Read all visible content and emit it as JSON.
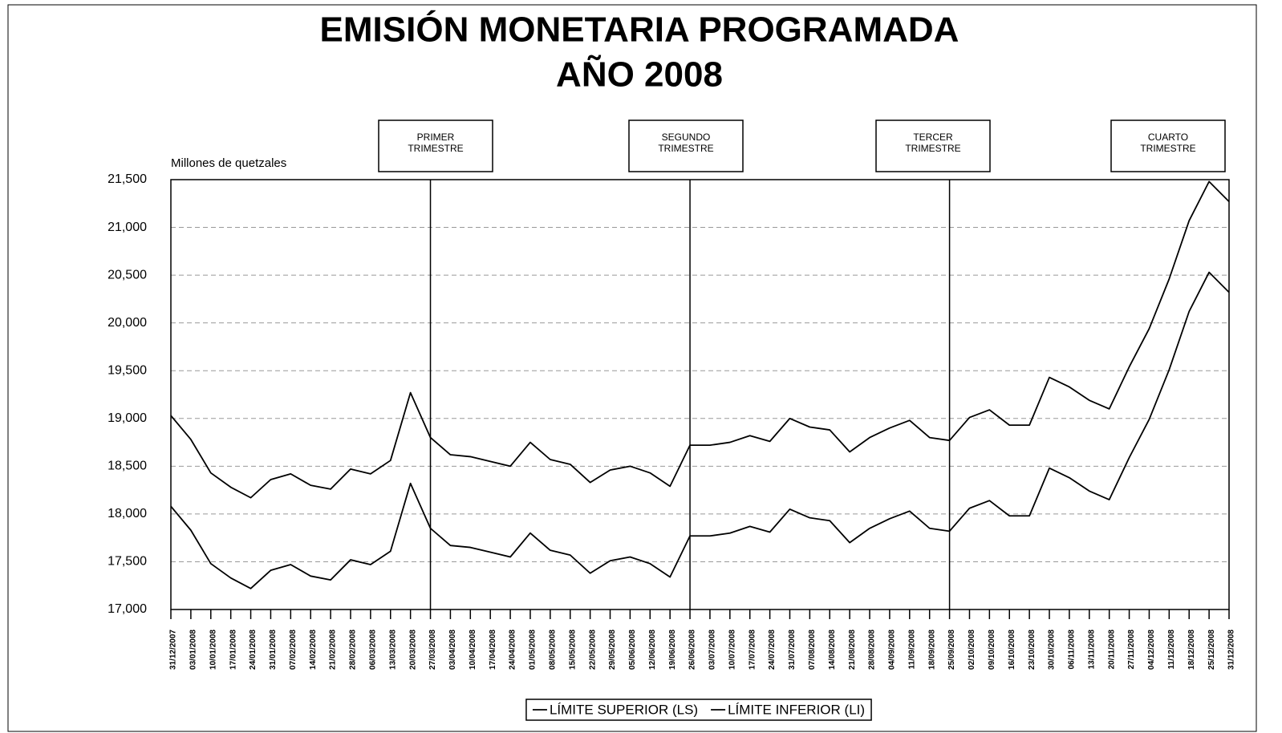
{
  "chart_data": {
    "type": "line",
    "title": [
      "EMISIÓN MONETARIA PROGRAMADA",
      "AÑO 2008"
    ],
    "y_label": "Millones de quetzales",
    "categories": [
      "31/12/2007",
      "03/01/2008",
      "10/01/2008",
      "17/01/2008",
      "24/01/2008",
      "31/01/2008",
      "07/02/2008",
      "14/02/2008",
      "21/02/2008",
      "28/02/2008",
      "06/03/2008",
      "13/03/2008",
      "20/03/2008",
      "27/03/2008",
      "03/04/2008",
      "10/04/2008",
      "17/04/2008",
      "24/04/2008",
      "01/05/2008",
      "08/05/2008",
      "15/05/2008",
      "22/05/2008",
      "29/05/2008",
      "05/06/2008",
      "12/06/2008",
      "19/06/2008",
      "26/06/2008",
      "03/07/2008",
      "10/07/2008",
      "17/07/2008",
      "24/07/2008",
      "31/07/2008",
      "07/08/2008",
      "14/08/2008",
      "21/08/2008",
      "28/08/2008",
      "04/09/2008",
      "11/09/2008",
      "18/09/2008",
      "25/09/2008",
      "02/10/2008",
      "09/10/2008",
      "16/10/2008",
      "23/10/2008",
      "30/10/2008",
      "06/11/2008",
      "13/11/2008",
      "20/11/2008",
      "27/11/2008",
      "04/12/2008",
      "11/12/2008",
      "18/12/2008",
      "25/12/2008",
      "31/12/2008"
    ],
    "series": [
      {
        "name": "LÍMITE SUPERIOR (LS)",
        "color": "#000000",
        "values": [
          19030,
          18780,
          18430,
          18280,
          18170,
          18360,
          18420,
          18300,
          18260,
          18470,
          18420,
          18560,
          19270,
          18800,
          18620,
          18600,
          18550,
          18500,
          18750,
          18570,
          18520,
          18330,
          18460,
          18500,
          18430,
          18290,
          18720,
          18720,
          18750,
          18820,
          18760,
          19000,
          18910,
          18880,
          18650,
          18800,
          18900,
          18980,
          18800,
          18770,
          19010,
          19090,
          18930,
          18930,
          19430,
          19330,
          19190,
          19100,
          19540,
          19940,
          20460,
          21070,
          21480,
          21270
        ]
      },
      {
        "name": "LÍMITE INFERIOR (LI)",
        "color": "#000000",
        "values": [
          18080,
          17830,
          17480,
          17330,
          17220,
          17410,
          17470,
          17350,
          17310,
          17520,
          17470,
          17610,
          18320,
          17850,
          17670,
          17650,
          17600,
          17550,
          17800,
          17620,
          17570,
          17380,
          17510,
          17550,
          17480,
          17340,
          17770,
          17770,
          17800,
          17870,
          17810,
          18050,
          17960,
          17930,
          17700,
          17850,
          17950,
          18030,
          17850,
          17820,
          18060,
          18140,
          17980,
          17980,
          18480,
          18380,
          18240,
          18150,
          18590,
          18990,
          19510,
          20120,
          20530,
          20320
        ]
      }
    ],
    "ylim": [
      17000,
      21500
    ],
    "yticks": [
      {
        "value": 17000,
        "label": "17,000"
      },
      {
        "value": 17500,
        "label": "17,500"
      },
      {
        "value": 18000,
        "label": "18,000"
      },
      {
        "value": 18500,
        "label": "18,500"
      },
      {
        "value": 19000,
        "label": "19,000"
      },
      {
        "value": 19500,
        "label": "19,500"
      },
      {
        "value": 20000,
        "label": "20,000"
      },
      {
        "value": 20500,
        "label": "20,500"
      },
      {
        "value": 21000,
        "label": "21,000"
      },
      {
        "value": 21500,
        "label": "21,500"
      }
    ],
    "grid": true,
    "legend": "bottom",
    "annotations": [
      {
        "x": "27/03/2008",
        "label": [
          "PRIMER",
          "TRIMESTRE"
        ]
      },
      {
        "x": "26/06/2008",
        "label": [
          "SEGUNDO",
          "TRIMESTRE"
        ]
      },
      {
        "x": "25/09/2008",
        "label": [
          "TERCER",
          "TRIMESTRE"
        ]
      },
      {
        "x": null,
        "label": [
          "CUARTO",
          "TRIMESTRE"
        ]
      }
    ]
  }
}
